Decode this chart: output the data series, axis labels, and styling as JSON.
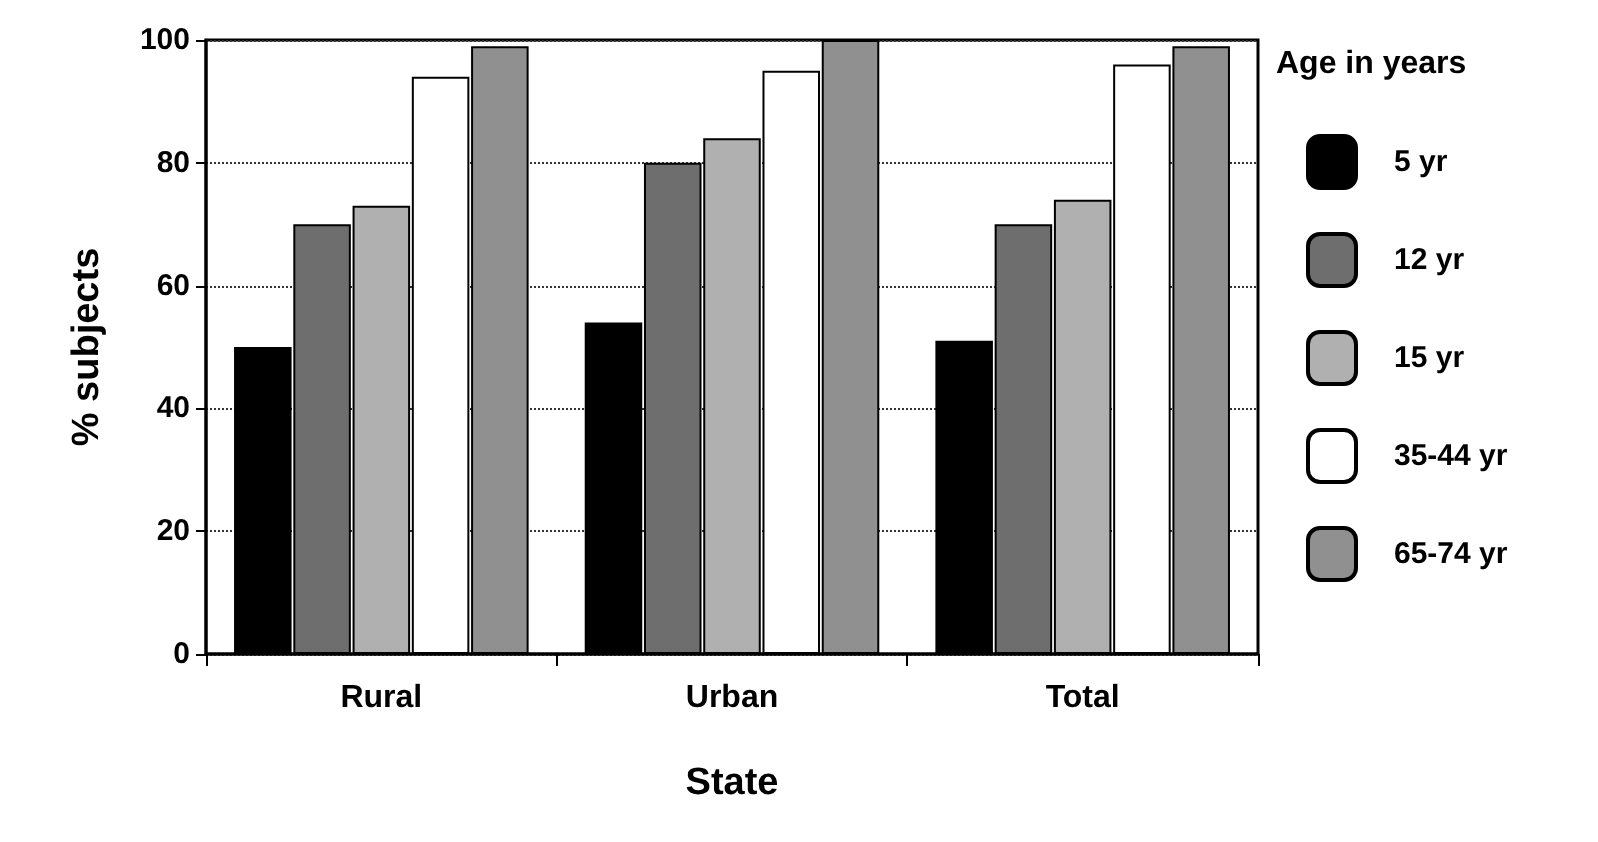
{
  "chart_data": {
    "type": "bar",
    "xlabel": "State",
    "ylabel": "% subjects",
    "legend_title": "Age in years",
    "categories": [
      "Rural",
      "Urban",
      "Total"
    ],
    "series": [
      {
        "name": "5 yr",
        "color": "#000000",
        "values": [
          50,
          54,
          51
        ]
      },
      {
        "name": "12 yr",
        "color": "#6e6e6e",
        "values": [
          70,
          80,
          70
        ]
      },
      {
        "name": "15 yr",
        "color": "#b0b0b0",
        "values": [
          73,
          84,
          74
        ]
      },
      {
        "name": "35-44 yr",
        "color": "#ffffff",
        "values": [
          94,
          95,
          96
        ]
      },
      {
        "name": "65-74 yr",
        "color": "#909090",
        "values": [
          99,
          100,
          99
        ]
      }
    ],
    "ylim": [
      0,
      100
    ],
    "yticks": [
      0,
      20,
      40,
      60,
      80,
      100
    ],
    "grid": "y",
    "legend": "right"
  }
}
